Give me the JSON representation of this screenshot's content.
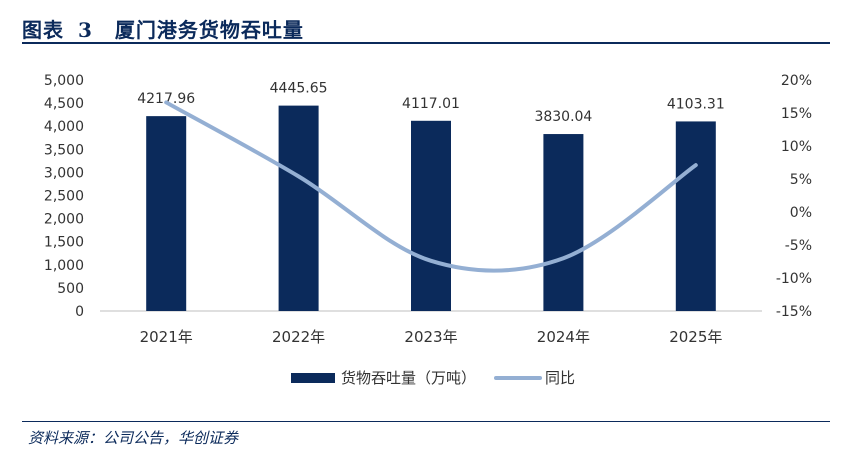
{
  "header": {
    "label": "图表",
    "number": "3",
    "title": "厦门港务货物吞吐量"
  },
  "source": "资料来源：公司公告，华创证券",
  "colors": {
    "bar": "#0b2a5b",
    "line": "#94afd3",
    "accent": "#0b2a5b"
  },
  "chart_data": {
    "type": "bar",
    "title": "",
    "categories": [
      "2021年",
      "2022年",
      "2023年",
      "2024年",
      "2025年"
    ],
    "series": [
      {
        "name": "货物吞吐量（万吨）",
        "type": "bar",
        "axis": "left",
        "values": [
          4217.96,
          4445.65,
          4117.01,
          3830.04,
          4103.31
        ],
        "labels": [
          "4217.96",
          "4445.65",
          "4117.01",
          "3830.04",
          "4103.31"
        ]
      },
      {
        "name": "同比",
        "type": "line",
        "axis": "right",
        "smooth": true,
        "values": [
          16.6,
          5.4,
          -7.4,
          -7.0,
          7.1
        ]
      }
    ],
    "y_left": {
      "range": [
        0,
        5000
      ],
      "ticks": [
        0,
        500,
        1000,
        1500,
        2000,
        2500,
        3000,
        3500,
        4000,
        4500,
        5000
      ],
      "tick_labels": [
        "0",
        "500",
        "1,000",
        "1,500",
        "2,000",
        "2,500",
        "3,000",
        "3,500",
        "4,000",
        "4,500",
        "5,000"
      ]
    },
    "y_right": {
      "range": [
        -15,
        20
      ],
      "ticks": [
        -15,
        -10,
        -5,
        0,
        5,
        10,
        15,
        20
      ],
      "tick_labels": [
        "-15%",
        "-10%",
        "-5%",
        "0%",
        "5%",
        "10%",
        "15%",
        "20%"
      ]
    },
    "grid": false,
    "legend": "bottom"
  }
}
